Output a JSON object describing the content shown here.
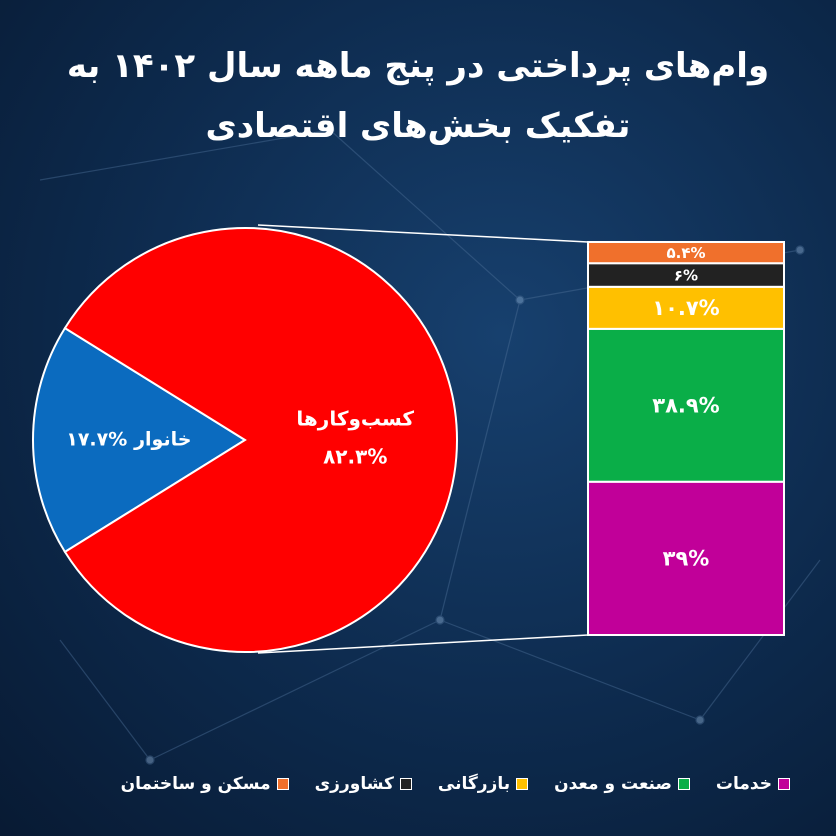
{
  "chart_data": [
    {
      "type": "pie",
      "title": "وام‌های پرداختی در پنج ماهه سال ۱۴۰۲ به تفکیک بخش‌های اقتصادی",
      "categories": [
        "خانوار",
        "کسب‌وکارها"
      ],
      "values": [
        17.7,
        82.3
      ],
      "value_labels": [
        "۱۷.۷%",
        "۸۲.۳%"
      ],
      "colors": [
        "#0b6bbf",
        "#ff0000"
      ]
    },
    {
      "type": "bar",
      "stacked": true,
      "series": [
        {
          "name": "خدمات",
          "color": "#c10099",
          "values": [
            39
          ],
          "value_labels": [
            "۳۹%"
          ]
        },
        {
          "name": "صنعت و معدن",
          "color": "#0aae48",
          "values": [
            38.9
          ],
          "value_labels": [
            "۳۸.۹%"
          ]
        },
        {
          "name": "بازرگانی",
          "color": "#ffc000",
          "values": [
            10.7
          ],
          "value_labels": [
            "۱۰.۷%"
          ]
        },
        {
          "name": "کشاورزی",
          "color": "#222222",
          "values": [
            6
          ],
          "value_labels": [
            "۶%"
          ]
        },
        {
          "name": "مسکن و ساختمان",
          "color": "#f0702c",
          "values": [
            5.4
          ],
          "value_labels": [
            "۵.۴%"
          ]
        }
      ]
    }
  ]
}
